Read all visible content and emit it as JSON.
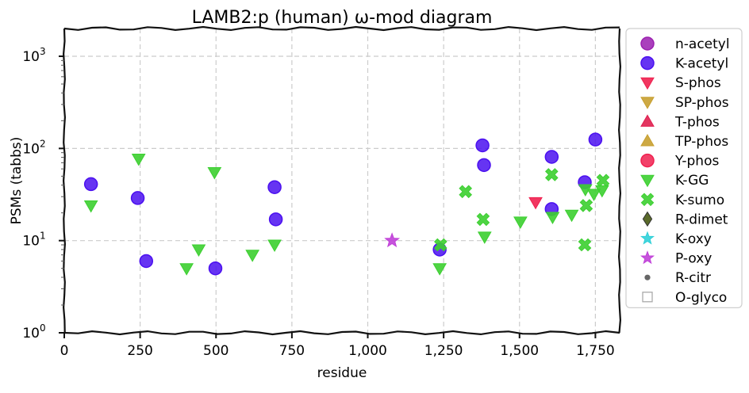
{
  "chart_data": {
    "type": "scatter",
    "title": "LAMB2:p (human) ω-mod diagram",
    "xlabel": "residue",
    "ylabel": "PSMs (tabbs)",
    "xlim": [
      0,
      1830
    ],
    "ylim": [
      1,
      2000
    ],
    "y_scale": "log",
    "grid": true,
    "legend_position": "right-outside",
    "x_ticks": [
      {
        "value": 0,
        "label": "0"
      },
      {
        "value": 250,
        "label": "250"
      },
      {
        "value": 500,
        "label": "500"
      },
      {
        "value": 750,
        "label": "750"
      },
      {
        "value": 1000,
        "label": "1,000"
      },
      {
        "value": 1250,
        "label": "1,250"
      },
      {
        "value": 1500,
        "label": "1,500"
      },
      {
        "value": 1750,
        "label": "1,750"
      }
    ],
    "y_ticks": [
      {
        "value": 1,
        "base": "10",
        "exp": "0"
      },
      {
        "value": 10,
        "base": "10",
        "exp": "1"
      },
      {
        "value": 100,
        "base": "10",
        "exp": "2"
      },
      {
        "value": 1000,
        "base": "10",
        "exp": "3"
      }
    ],
    "series": [
      {
        "name": "n-acetyl",
        "marker": "circle",
        "color": "#9b1fb0",
        "points": []
      },
      {
        "name": "K-acetyl",
        "marker": "circle",
        "color": "#4b10f0",
        "points": [
          [
            88,
            41
          ],
          [
            242,
            29
          ],
          [
            270,
            6
          ],
          [
            498,
            5
          ],
          [
            693,
            38
          ],
          [
            697,
            17
          ],
          [
            1237,
            8
          ],
          [
            1378,
            108
          ],
          [
            1383,
            66
          ],
          [
            1606,
            81
          ],
          [
            1606,
            22
          ],
          [
            1715,
            43
          ],
          [
            1750,
            125
          ]
        ]
      },
      {
        "name": "S-phos",
        "marker": "triangle-down",
        "color": "#f0204f",
        "points": [
          [
            1553,
            26
          ]
        ]
      },
      {
        "name": "SP-phos",
        "marker": "triangle-down",
        "color": "#c8a030",
        "points": []
      },
      {
        "name": "T-phos",
        "marker": "triangle-up",
        "color": "#e02050",
        "points": []
      },
      {
        "name": "TP-phos",
        "marker": "triangle-up",
        "color": "#c8a030",
        "points": []
      },
      {
        "name": "Y-phos",
        "marker": "circle",
        "color": "#f0204f",
        "points": []
      },
      {
        "name": "K-GG",
        "marker": "triangle-down",
        "color": "#3ccf30",
        "points": [
          [
            88,
            24
          ],
          [
            245,
            77
          ],
          [
            403,
            5
          ],
          [
            443,
            8
          ],
          [
            495,
            55
          ],
          [
            620,
            7
          ],
          [
            693,
            9
          ],
          [
            1237,
            5
          ],
          [
            1385,
            11
          ],
          [
            1503,
            16
          ],
          [
            1609,
            18
          ],
          [
            1672,
            19
          ],
          [
            1717,
            36
          ],
          [
            1745,
            32
          ],
          [
            1772,
            35
          ]
        ]
      },
      {
        "name": "K-sumo",
        "marker": "x",
        "color": "#3ccf30",
        "points": [
          [
            1240,
            9
          ],
          [
            1322,
            34
          ],
          [
            1380,
            17
          ],
          [
            1606,
            52
          ],
          [
            1715,
            9
          ],
          [
            1720,
            24
          ],
          [
            1775,
            45
          ]
        ]
      },
      {
        "name": "R-dimet",
        "marker": "diamond",
        "color": "#5a6a2a",
        "points": []
      },
      {
        "name": "K-oxy",
        "marker": "star",
        "color": "#30d0d8",
        "points": []
      },
      {
        "name": "P-oxy",
        "marker": "star",
        "color": "#c040d8",
        "points": [
          [
            1080,
            10
          ]
        ]
      },
      {
        "name": "R-citr",
        "marker": "dot",
        "color": "#666666",
        "points": []
      },
      {
        "name": "O-glyco",
        "marker": "square-open",
        "color": "#aaaaaa",
        "points": []
      }
    ]
  }
}
